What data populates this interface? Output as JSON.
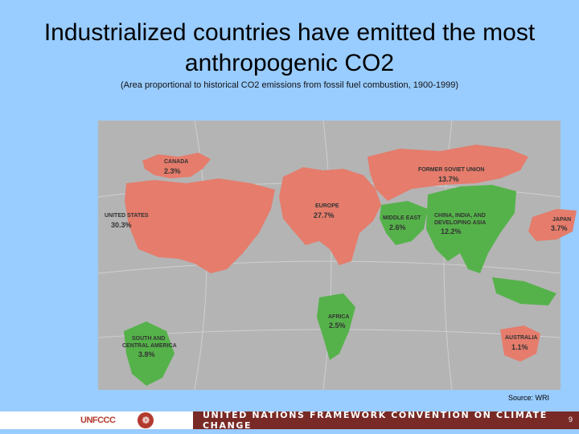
{
  "title_line1": "Industrialized countries have emitted the most",
  "title_line2": "anthropogenic CO2",
  "subtitle": "(Area proportional to historical CO2 emissions from fossil fuel combustion, 1900-1999)",
  "source": "Source: WRI",
  "footer": {
    "logo_text": "UNFCCC",
    "banner": "UNITED NATIONS FRAMEWORK CONVENTION ON CLIMATE CHANGE",
    "page_number": "9"
  },
  "colors": {
    "industrialized": "#e57c6c",
    "developing": "#55b24a",
    "ocean": "#b4b4b4"
  },
  "regions": [
    {
      "id": "canada",
      "name": "CANADA",
      "share": "2.3%",
      "group": "industrialized"
    },
    {
      "id": "united-states",
      "name": "UNITED STATES",
      "share": "30.3%",
      "group": "industrialized"
    },
    {
      "id": "europe",
      "name": "EUROPE",
      "share": "27.7%",
      "group": "industrialized"
    },
    {
      "id": "former-soviet-union",
      "name": "FORMER SOVIET UNION",
      "share": "13.7%",
      "group": "industrialized"
    },
    {
      "id": "middle-east",
      "name": "MIDDLE EAST",
      "share": "2.6%",
      "group": "developing"
    },
    {
      "id": "china-india-developing-asia",
      "name_lines": [
        "CHINA, INDIA, AND",
        "DEVELOPING ASIA"
      ],
      "share": "12.2%",
      "group": "developing"
    },
    {
      "id": "japan",
      "name": "JAPAN",
      "share": "3.7%",
      "group": "industrialized"
    },
    {
      "id": "africa",
      "name": "AFRICA",
      "share": "2.5%",
      "group": "developing"
    },
    {
      "id": "south-central-america",
      "name_lines": [
        "SOUTH AND",
        "CENTRAL AMERICA"
      ],
      "share": "3.8%",
      "group": "developing"
    },
    {
      "id": "australia",
      "name": "AUSTRALIA",
      "share": "1.1%",
      "group": "industrialized"
    }
  ]
}
